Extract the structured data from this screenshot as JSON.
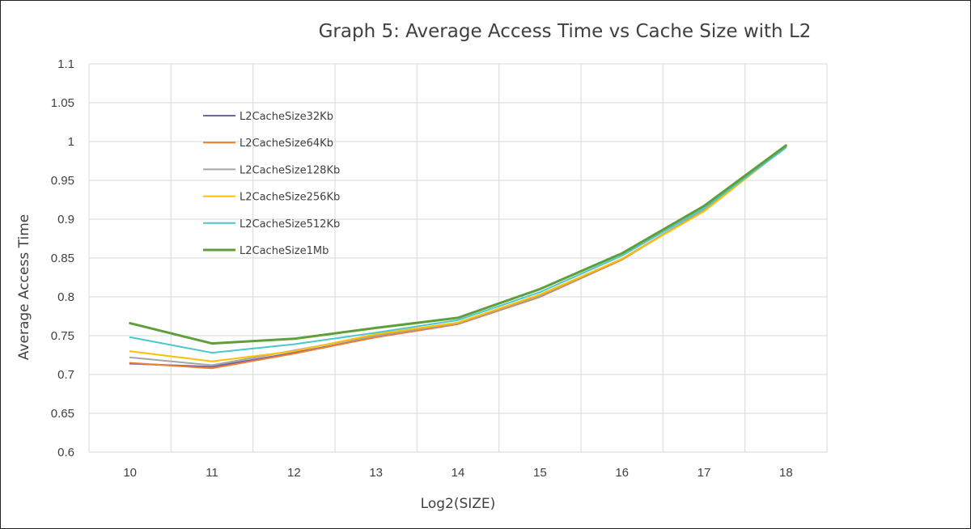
{
  "chart_data": {
    "type": "line",
    "title": "Graph 5: Average Access Time vs Cache Size with L2",
    "xlabel": "Log2(SIZE)",
    "ylabel": "Average Access Time",
    "x": [
      10,
      11,
      12,
      13,
      14,
      15,
      16,
      17,
      18
    ],
    "x_tick_labels": [
      "10",
      "11",
      "12",
      "13",
      "14",
      "15",
      "16",
      "17",
      "18"
    ],
    "ylim": [
      0.6,
      1.1
    ],
    "y_tick_values": [
      0.6,
      0.65,
      0.7,
      0.75,
      0.8,
      0.85,
      0.9,
      0.95,
      1.0,
      1.05,
      1.1
    ],
    "y_tick_labels": [
      "0.6",
      "0.65",
      "0.7",
      "0.75",
      "0.8",
      "0.85",
      "0.9",
      "0.95",
      "1",
      "1.05",
      "1.1"
    ],
    "grid": "on",
    "legend_placement": "upper-left inside plot",
    "series": [
      {
        "name": "L2CacheSize32Kb",
        "color": "#7264a3",
        "values": [
          0.714,
          0.71,
          0.728,
          0.748,
          0.765,
          0.8,
          0.848,
          0.912,
          0.993
        ]
      },
      {
        "name": "L2CacheSize64Kb",
        "color": "#ed7d31",
        "values": [
          0.715,
          0.708,
          0.727,
          0.748,
          0.765,
          0.8,
          0.848,
          0.912,
          0.993
        ]
      },
      {
        "name": "L2CacheSize128Kb",
        "color": "#a5a5a5",
        "values": [
          0.722,
          0.712,
          0.731,
          0.75,
          0.766,
          0.801,
          0.849,
          0.912,
          0.993
        ]
      },
      {
        "name": "L2CacheSize256Kb",
        "color": "#ffc000",
        "values": [
          0.73,
          0.717,
          0.73,
          0.752,
          0.767,
          0.803,
          0.849,
          0.91,
          0.993
        ]
      },
      {
        "name": "L2CacheSize512Kb",
        "color": "#4bc8c8",
        "values": [
          0.748,
          0.728,
          0.739,
          0.754,
          0.77,
          0.806,
          0.853,
          0.914,
          0.992
        ]
      },
      {
        "name": "L2CacheSize1Mb",
        "color": "#5f9e3a",
        "values": [
          0.766,
          0.74,
          0.746,
          0.76,
          0.773,
          0.81,
          0.856,
          0.917,
          0.995
        ]
      }
    ]
  }
}
